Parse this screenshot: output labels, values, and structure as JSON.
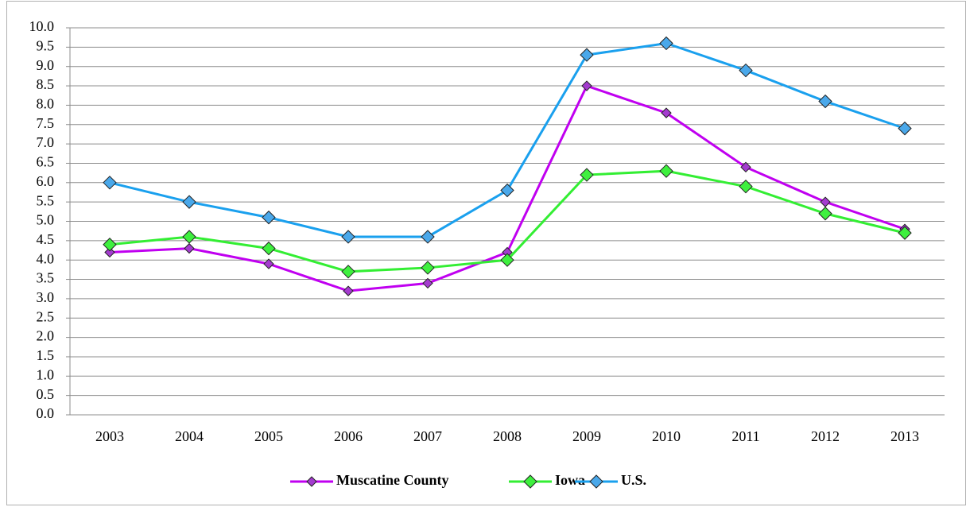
{
  "chart_data": {
    "type": "line",
    "categories": [
      "2003",
      "2004",
      "2005",
      "2006",
      "2007",
      "2008",
      "2009",
      "2010",
      "2011",
      "2012",
      "2013"
    ],
    "series": [
      {
        "name": "Muscatine County",
        "color": "#c000f0",
        "marker_color": "#a43ccf",
        "values": [
          4.2,
          4.3,
          3.9,
          3.2,
          3.4,
          4.2,
          8.5,
          7.8,
          6.4,
          5.5,
          4.8
        ]
      },
      {
        "name": "Iowa",
        "color": "#33ee33",
        "marker_color": "#3ef03e",
        "values": [
          4.4,
          4.6,
          4.3,
          3.7,
          3.8,
          4.0,
          6.2,
          6.3,
          5.9,
          5.2,
          4.7
        ]
      },
      {
        "name": "U.S.",
        "color": "#1aa0ee",
        "marker_color": "#4aa8ea",
        "values": [
          6.0,
          5.5,
          5.1,
          4.6,
          4.6,
          5.8,
          9.3,
          9.6,
          8.9,
          8.1,
          7.4
        ]
      }
    ],
    "ylim": [
      0,
      10
    ],
    "yticks": [
      {
        "value": 0,
        "label": "0.0"
      },
      0.5,
      {
        "value": 1,
        "label": "1.0"
      },
      1.5,
      {
        "value": 2,
        "label": "2.0"
      },
      2.5,
      {
        "value": 3,
        "label": "3.0"
      },
      3.5,
      {
        "value": 4,
        "label": "4.0"
      },
      4.5,
      {
        "value": 5,
        "label": "5.0"
      },
      5.5,
      {
        "value": 6,
        "label": "6.0"
      },
      6.5,
      {
        "value": 7,
        "label": "7.0"
      },
      7.5,
      {
        "value": 8,
        "label": "8.0"
      },
      8.5,
      {
        "value": 9,
        "label": "9.0"
      },
      9.5,
      {
        "value": 10,
        "label": "10.0"
      }
    ],
    "grid": true,
    "legend": "bottom"
  }
}
